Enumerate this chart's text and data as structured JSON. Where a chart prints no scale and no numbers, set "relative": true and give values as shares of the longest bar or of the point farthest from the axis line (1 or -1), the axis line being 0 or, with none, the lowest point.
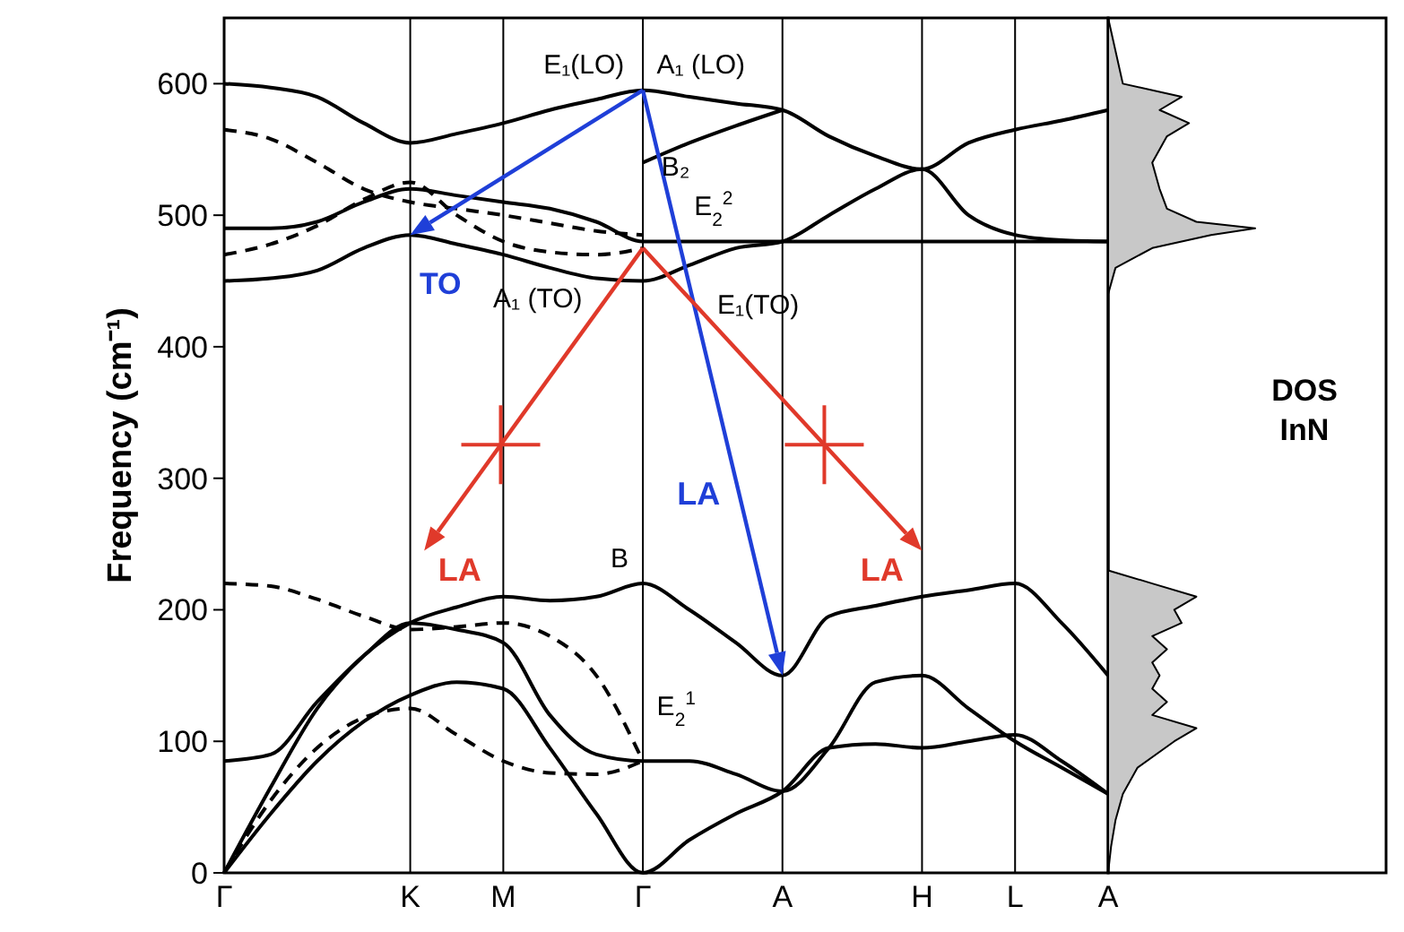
{
  "chart_data": [
    {
      "type": "line",
      "ylabel": "Frequency (cm⁻¹)",
      "categories": [
        "Γ",
        null,
        null,
        null,
        "K",
        null,
        "M",
        null,
        null,
        "Γ",
        null,
        null,
        "A",
        null,
        null,
        "H",
        null,
        "L",
        null,
        "A"
      ],
      "ylim": [
        0,
        650
      ],
      "yticks": [
        0,
        100,
        200,
        300,
        400,
        500,
        600
      ],
      "grid": "x",
      "series": [
        {
          "color": "#000000",
          "line_style": "solid",
          "values": [
            0,
            65,
            125,
            165,
            190,
            202,
            210,
            207,
            210,
            220,
            200,
            175,
            150,
            195,
            203,
            210,
            215,
            220,
            190,
            150
          ]
        },
        {
          "color": "#000000",
          "line_style": "solid",
          "values": [
            0,
            45,
            85,
            115,
            135,
            145,
            140,
            95,
            45,
            0,
            25,
            45,
            62,
            95,
            98,
            95,
            100,
            105,
            85,
            60
          ]
        },
        {
          "color": "#000000",
          "line_style": "solid",
          "values": [
            85,
            90,
            130,
            165,
            190,
            185,
            175,
            120,
            90,
            85,
            85,
            75,
            62,
            95,
            145,
            150,
            125,
            100,
            80,
            60
          ]
        },
        {
          "color": "#000000",
          "line_style": "solid",
          "values": [
            600,
            597,
            590,
            570,
            555,
            562,
            570,
            580,
            588,
            595,
            590,
            585,
            580,
            560,
            545,
            535,
            555,
            565,
            572,
            580
          ]
        },
        {
          "color": "#000000",
          "line_style": "solid",
          "values": [
            490,
            490,
            495,
            510,
            520,
            515,
            510,
            505,
            495,
            480,
            480,
            480,
            480,
            480,
            480,
            480,
            480,
            480,
            480,
            480
          ]
        },
        {
          "color": "#000000",
          "line_style": "solid",
          "values": [
            450,
            452,
            458,
            475,
            485,
            478,
            470,
            460,
            452,
            450,
            462,
            475,
            480,
            500,
            520,
            535,
            500,
            485,
            481,
            480
          ]
        },
        {
          "color": "#000000",
          "line_style": "solid",
          "values": [
            null,
            null,
            null,
            null,
            null,
            null,
            null,
            null,
            null,
            540,
            555,
            568,
            580,
            null,
            null,
            null,
            null,
            null,
            null,
            null
          ]
        },
        {
          "color": "#000000",
          "line_style": "dashed",
          "values": [
            220,
            218,
            208,
            195,
            185,
            187,
            190,
            180,
            150,
            85,
            null,
            null,
            null,
            null,
            null,
            null,
            null,
            null,
            null,
            null
          ]
        },
        {
          "color": "#000000",
          "line_style": "dashed",
          "values": [
            0,
            55,
            95,
            118,
            125,
            105,
            85,
            76,
            75,
            85,
            null,
            null,
            null,
            null,
            null,
            null,
            null,
            null,
            null,
            null
          ]
        },
        {
          "color": "#000000",
          "line_style": "dashed",
          "values": [
            565,
            558,
            540,
            520,
            510,
            505,
            500,
            494,
            488,
            485,
            null,
            null,
            null,
            null,
            null,
            null,
            null,
            null,
            null,
            null
          ]
        },
        {
          "color": "#000000",
          "line_style": "dashed",
          "values": [
            470,
            478,
            492,
            512,
            525,
            500,
            480,
            472,
            470,
            475,
            null,
            null,
            null,
            null,
            null,
            null,
            null,
            null,
            null,
            null
          ]
        }
      ],
      "annotations": [
        "E₁(LO)",
        "A₁ (LO)",
        "B₂",
        "E$_{2}$$^{2}$",
        "E₁(TO)",
        "A₁ (TO)",
        "TO",
        {
          "text": "LA",
          "x": "K",
          "y": 190
        },
        "LA",
        "LA",
        "B",
        "E$_{2}$$^{1}$"
      ]
    },
    {
      "type": "area",
      "orientation": "horizontal",
      "relative": true,
      "color": "#c8c8c8",
      "ylim": [
        0,
        650
      ],
      "tick_labels": false,
      "x": [
        0,
        20,
        40,
        60,
        80,
        100,
        110,
        120,
        130,
        140,
        150,
        160,
        170,
        180,
        190,
        200,
        210,
        220,
        230,
        300,
        440,
        460,
        475,
        485,
        490,
        495,
        505,
        520,
        540,
        560,
        570,
        580,
        590,
        600,
        650
      ],
      "values": [
        0,
        0.02,
        0.05,
        0.1,
        0.2,
        0.45,
        0.6,
        0.3,
        0.4,
        0.3,
        0.35,
        0.3,
        0.4,
        0.3,
        0.5,
        0.45,
        0.6,
        0.3,
        0,
        0,
        0,
        0.05,
        0.3,
        0.7,
        1.0,
        0.6,
        0.4,
        0.35,
        0.3,
        0.4,
        0.55,
        0.35,
        0.5,
        0.1,
        0
      ],
      "annotations": [
        "DOS",
        "InN"
      ]
    }
  ]
}
